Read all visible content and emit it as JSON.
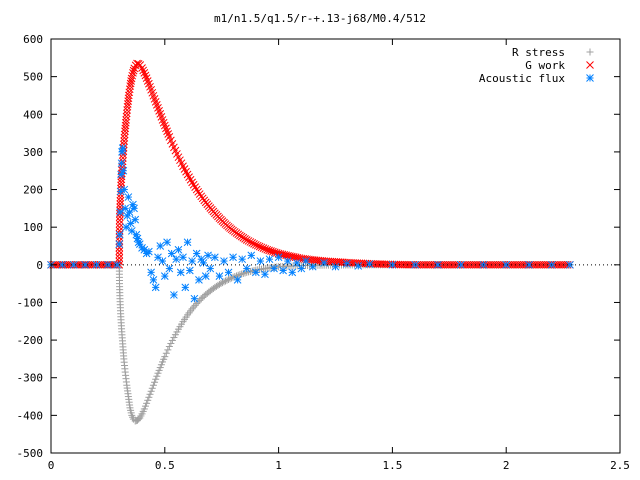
{
  "chart_data": {
    "type": "scatter",
    "title": "m1/n1.5/q1.5/r-+.13-j68/M0.4/512",
    "xlabel": "",
    "ylabel": "",
    "xlim": [
      0,
      2.5
    ],
    "ylim": [
      -500,
      600
    ],
    "xticks": [
      "0",
      "0.5",
      "1",
      "1.5",
      "2",
      "2.5"
    ],
    "yticks": [
      "-500",
      "-400",
      "-300",
      "-200",
      "-100",
      "0",
      "100",
      "200",
      "300",
      "400",
      "500",
      "600"
    ],
    "grid": false,
    "legend_position": "top-right",
    "series": [
      {
        "name": "R stress",
        "marker": "plus",
        "color": "#a0a0a0",
        "points": [
          [
            0.0,
            0
          ],
          [
            0.1,
            0
          ],
          [
            0.2,
            0
          ],
          [
            0.3,
            0
          ],
          [
            0.301,
            -50
          ],
          [
            0.303,
            -90
          ],
          [
            0.306,
            -130
          ],
          [
            0.31,
            -170
          ],
          [
            0.315,
            -210
          ],
          [
            0.32,
            -250
          ],
          [
            0.326,
            -285
          ],
          [
            0.333,
            -320
          ],
          [
            0.34,
            -350
          ],
          [
            0.347,
            -380
          ],
          [
            0.355,
            -400
          ],
          [
            0.362,
            -410
          ],
          [
            0.37,
            -415
          ],
          [
            0.38,
            -413
          ],
          [
            0.39,
            -407
          ],
          [
            0.4,
            -396
          ],
          [
            0.41,
            -383
          ],
          [
            0.42,
            -368
          ],
          [
            0.43,
            -352
          ],
          [
            0.44,
            -336
          ],
          [
            0.45,
            -320
          ],
          [
            0.46,
            -304
          ],
          [
            0.47,
            -288
          ],
          [
            0.48,
            -273
          ],
          [
            0.49,
            -258
          ],
          [
            0.5,
            -244
          ],
          [
            0.52,
            -217
          ],
          [
            0.54,
            -193
          ],
          [
            0.56,
            -171
          ],
          [
            0.58,
            -151
          ],
          [
            0.6,
            -133
          ],
          [
            0.62,
            -117
          ],
          [
            0.64,
            -103
          ],
          [
            0.66,
            -90
          ],
          [
            0.68,
            -79
          ],
          [
            0.7,
            -69
          ],
          [
            0.72,
            -60
          ],
          [
            0.74,
            -52
          ],
          [
            0.76,
            -45
          ],
          [
            0.78,
            -39
          ],
          [
            0.8,
            -33
          ],
          [
            0.83,
            -26
          ],
          [
            0.86,
            -20
          ],
          [
            0.9,
            -14
          ],
          [
            0.95,
            -9
          ],
          [
            1.0,
            -5
          ],
          [
            1.1,
            -2
          ],
          [
            1.2,
            -1
          ],
          [
            1.4,
            0
          ],
          [
            1.6,
            0
          ],
          [
            1.8,
            0
          ],
          [
            2.0,
            0
          ],
          [
            2.28,
            0
          ]
        ]
      },
      {
        "name": "G work",
        "marker": "cross",
        "color": "#ff0000",
        "points": [
          [
            0.0,
            0
          ],
          [
            0.1,
            0
          ],
          [
            0.2,
            0
          ],
          [
            0.3,
            0
          ],
          [
            0.301,
            100
          ],
          [
            0.303,
            145
          ],
          [
            0.306,
            195
          ],
          [
            0.31,
            235
          ],
          [
            0.315,
            275
          ],
          [
            0.32,
            320
          ],
          [
            0.325,
            355
          ],
          [
            0.33,
            385
          ],
          [
            0.336,
            420
          ],
          [
            0.342,
            450
          ],
          [
            0.348,
            475
          ],
          [
            0.354,
            495
          ],
          [
            0.36,
            510
          ],
          [
            0.366,
            522
          ],
          [
            0.372,
            530
          ],
          [
            0.378,
            535
          ],
          [
            0.385,
            534
          ],
          [
            0.392,
            531
          ],
          [
            0.4,
            523
          ],
          [
            0.41,
            510
          ],
          [
            0.42,
            496
          ],
          [
            0.43,
            481
          ],
          [
            0.44,
            465
          ],
          [
            0.45,
            449
          ],
          [
            0.46,
            433
          ],
          [
            0.47,
            417
          ],
          [
            0.48,
            401
          ],
          [
            0.49,
            385
          ],
          [
            0.5,
            370
          ],
          [
            0.52,
            340
          ],
          [
            0.54,
            312
          ],
          [
            0.56,
            286
          ],
          [
            0.58,
            262
          ],
          [
            0.6,
            240
          ],
          [
            0.62,
            219
          ],
          [
            0.64,
            200
          ],
          [
            0.66,
            182
          ],
          [
            0.68,
            166
          ],
          [
            0.7,
            151
          ],
          [
            0.72,
            137
          ],
          [
            0.74,
            124
          ],
          [
            0.76,
            112
          ],
          [
            0.78,
            101
          ],
          [
            0.8,
            91
          ],
          [
            0.83,
            78
          ],
          [
            0.86,
            66
          ],
          [
            0.9,
            53
          ],
          [
            0.95,
            40
          ],
          [
            1.0,
            30
          ],
          [
            1.05,
            23
          ],
          [
            1.1,
            17
          ],
          [
            1.15,
            13
          ],
          [
            1.2,
            10
          ],
          [
            1.3,
            6
          ],
          [
            1.4,
            3
          ],
          [
            1.5,
            1
          ],
          [
            1.6,
            0
          ],
          [
            1.8,
            0
          ],
          [
            2.0,
            0
          ],
          [
            2.28,
            0
          ]
        ]
      },
      {
        "name": "Acoustic flux",
        "marker": "star",
        "color": "#0080ff",
        "points": [
          [
            0.0,
            0
          ],
          [
            0.05,
            0
          ],
          [
            0.1,
            0
          ],
          [
            0.15,
            0
          ],
          [
            0.2,
            0
          ],
          [
            0.25,
            0
          ],
          [
            0.29,
            0
          ],
          [
            0.3,
            55
          ],
          [
            0.302,
            80
          ],
          [
            0.304,
            140
          ],
          [
            0.306,
            195
          ],
          [
            0.308,
            240
          ],
          [
            0.31,
            270
          ],
          [
            0.312,
            300
          ],
          [
            0.315,
            310
          ],
          [
            0.318,
            250
          ],
          [
            0.322,
            200
          ],
          [
            0.326,
            150
          ],
          [
            0.33,
            100
          ],
          [
            0.335,
            130
          ],
          [
            0.34,
            180
          ],
          [
            0.345,
            140
          ],
          [
            0.35,
            110
          ],
          [
            0.355,
            90
          ],
          [
            0.36,
            160
          ],
          [
            0.365,
            150
          ],
          [
            0.37,
            120
          ],
          [
            0.375,
            80
          ],
          [
            0.38,
            70
          ],
          [
            0.385,
            60
          ],
          [
            0.39,
            55
          ],
          [
            0.4,
            45
          ],
          [
            0.41,
            40
          ],
          [
            0.42,
            30
          ],
          [
            0.43,
            35
          ],
          [
            0.44,
            -20
          ],
          [
            0.45,
            -40
          ],
          [
            0.46,
            -60
          ],
          [
            0.47,
            20
          ],
          [
            0.48,
            50
          ],
          [
            0.49,
            10
          ],
          [
            0.5,
            -30
          ],
          [
            0.51,
            60
          ],
          [
            0.52,
            -10
          ],
          [
            0.53,
            30
          ],
          [
            0.54,
            -80
          ],
          [
            0.55,
            15
          ],
          [
            0.56,
            40
          ],
          [
            0.57,
            -20
          ],
          [
            0.58,
            20
          ],
          [
            0.59,
            -60
          ],
          [
            0.6,
            60
          ],
          [
            0.61,
            -15
          ],
          [
            0.62,
            10
          ],
          [
            0.63,
            -90
          ],
          [
            0.64,
            30
          ],
          [
            0.65,
            -40
          ],
          [
            0.66,
            15
          ],
          [
            0.67,
            5
          ],
          [
            0.68,
            -30
          ],
          [
            0.69,
            25
          ],
          [
            0.7,
            -10
          ],
          [
            0.72,
            20
          ],
          [
            0.74,
            -30
          ],
          [
            0.76,
            10
          ],
          [
            0.78,
            -20
          ],
          [
            0.8,
            20
          ],
          [
            0.82,
            -40
          ],
          [
            0.84,
            15
          ],
          [
            0.86,
            -10
          ],
          [
            0.88,
            25
          ],
          [
            0.9,
            -20
          ],
          [
            0.92,
            10
          ],
          [
            0.94,
            -25
          ],
          [
            0.96,
            15
          ],
          [
            0.98,
            -10
          ],
          [
            1.0,
            20
          ],
          [
            1.02,
            -15
          ],
          [
            1.04,
            10
          ],
          [
            1.06,
            -20
          ],
          [
            1.08,
            5
          ],
          [
            1.1,
            -10
          ],
          [
            1.12,
            10
          ],
          [
            1.15,
            -5
          ],
          [
            1.2,
            5
          ],
          [
            1.25,
            -5
          ],
          [
            1.3,
            3
          ],
          [
            1.35,
            -3
          ],
          [
            1.4,
            2
          ],
          [
            1.5,
            0
          ],
          [
            1.6,
            0
          ],
          [
            1.7,
            0
          ],
          [
            1.8,
            0
          ],
          [
            1.9,
            0
          ],
          [
            2.0,
            0
          ],
          [
            2.1,
            0
          ],
          [
            2.2,
            0
          ],
          [
            2.28,
            0
          ]
        ]
      }
    ]
  }
}
